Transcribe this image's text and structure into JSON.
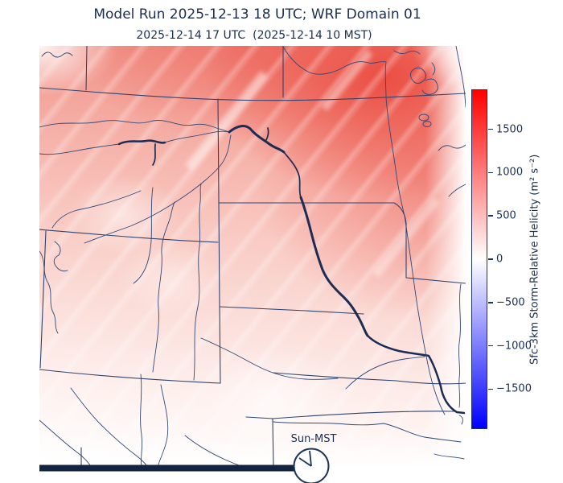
{
  "figure": {
    "title": "Model Run 2025-12-13 18 UTC; WRF Domain 01",
    "subtitle": "2025-12-14 17 UTC  (2025-12-14 10 MST)"
  },
  "colorbar": {
    "label": "Sfc-3km Storm-Relative Helicity (m² s⁻²)",
    "ticks": [
      1500,
      1000,
      500,
      0,
      -500,
      -1000,
      -1500
    ],
    "vmin": -1960,
    "vmax": 1960,
    "max_color": "#ff0000",
    "mid_color": "#ffffff",
    "min_color": "#0000ff",
    "tick_color": "#1d3358"
  },
  "clock": {
    "label": "Sun-MST",
    "time_shown": "10:00"
  },
  "chart_data": {
    "type": "heatmap",
    "title": "Model Run 2025-12-13 18 UTC; WRF Domain 01",
    "subtitle": "2025-12-14 17 UTC  (2025-12-14 10 MST)",
    "colorbar_label": "Sfc-3km Storm-Relative Helicity (m² s⁻²)",
    "colorbar_ticks": [
      1500,
      1000,
      500,
      0,
      -500,
      -1000,
      -1500
    ],
    "value_range": [
      -1960,
      1960
    ],
    "colormap": "blue-white-red",
    "legend_position": "right",
    "field_description": "Positive (red) helicity over entire mapped domain; strongest shading in the north and northeast, fading to near zero (white) along the southern and right edges."
  }
}
